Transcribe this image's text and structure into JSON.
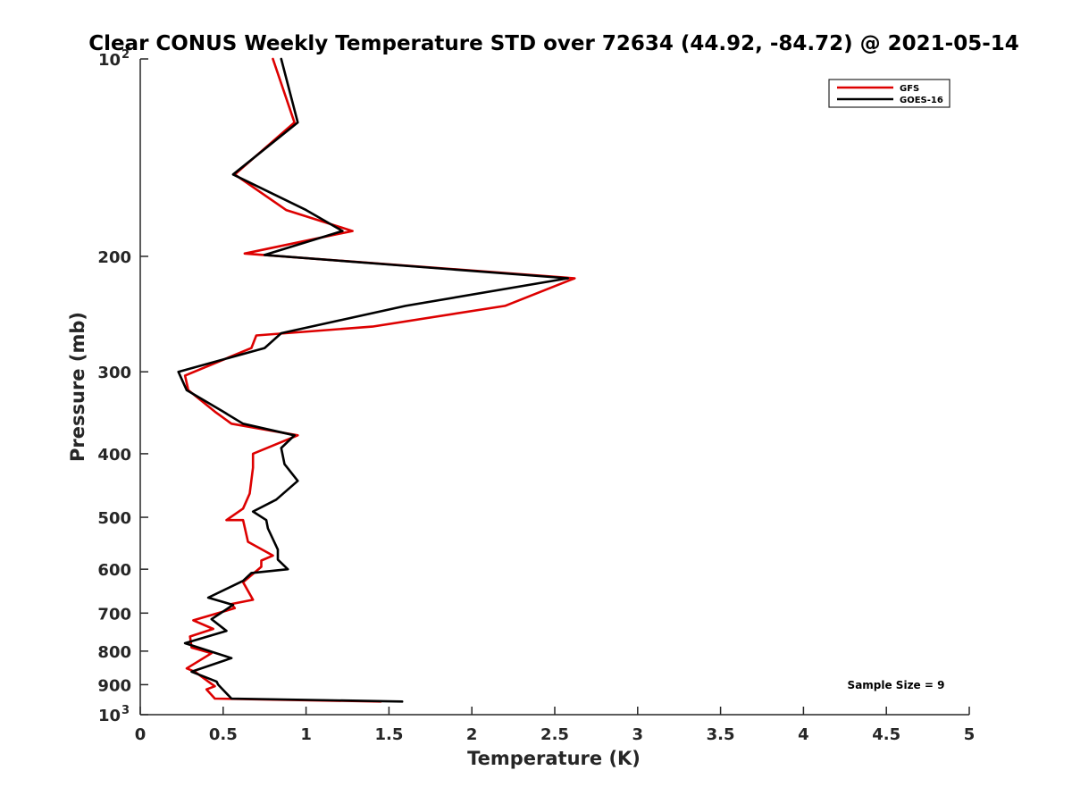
{
  "chart_data": {
    "type": "line",
    "title": "Clear CONUS Weekly Temperature STD over 72634 (44.92, -84.72) @ 2021-05-14",
    "xlabel": "Temperature (K)",
    "ylabel": "Pressure (mb)",
    "xlim": [
      0,
      5
    ],
    "ylim": [
      100,
      1000
    ],
    "y_scale": "log",
    "y_reversed": true,
    "x_ticks": [
      "0",
      "0.5",
      "1",
      "1.5",
      "2",
      "2.5",
      "3",
      "3.5",
      "4",
      "4.5",
      "5"
    ],
    "y_ticks": [
      {
        "value": 100,
        "base": "10",
        "exp": "2"
      },
      {
        "value": 200,
        "label": "200"
      },
      {
        "value": 300,
        "label": "300"
      },
      {
        "value": 400,
        "label": "400"
      },
      {
        "value": 500,
        "label": "500"
      },
      {
        "value": 600,
        "label": "600"
      },
      {
        "value": 700,
        "label": "700"
      },
      {
        "value": 800,
        "label": "800"
      },
      {
        "value": 900,
        "label": "900"
      },
      {
        "value": 1000,
        "base": "10",
        "exp": "3"
      }
    ],
    "grid": false,
    "legend_position": "top-right",
    "annotation": "Sample Size = 9",
    "series": [
      {
        "name": "GFS",
        "color": "#dd0000",
        "points": [
          [
            0.8,
            100
          ],
          [
            0.93,
            125
          ],
          [
            0.57,
            150
          ],
          [
            0.88,
            170
          ],
          [
            1.28,
            183
          ],
          [
            0.63,
            198
          ],
          [
            2.62,
            216
          ],
          [
            2.2,
            238
          ],
          [
            1.4,
            256
          ],
          [
            0.7,
            264
          ],
          [
            0.67,
            276
          ],
          [
            0.27,
            304
          ],
          [
            0.29,
            320
          ],
          [
            0.45,
            345
          ],
          [
            0.55,
            360
          ],
          [
            0.95,
            375
          ],
          [
            0.68,
            400
          ],
          [
            0.68,
            420
          ],
          [
            0.66,
            460
          ],
          [
            0.62,
            485
          ],
          [
            0.52,
            505
          ],
          [
            0.62,
            505
          ],
          [
            0.65,
            545
          ],
          [
            0.8,
            572
          ],
          [
            0.73,
            582
          ],
          [
            0.73,
            595
          ],
          [
            0.62,
            628
          ],
          [
            0.68,
            668
          ],
          [
            0.55,
            678
          ],
          [
            0.57,
            688
          ],
          [
            0.32,
            718
          ],
          [
            0.44,
            740
          ],
          [
            0.3,
            760
          ],
          [
            0.31,
            790
          ],
          [
            0.43,
            806
          ],
          [
            0.28,
            850
          ],
          [
            0.33,
            860
          ],
          [
            0.41,
            890
          ],
          [
            0.45,
            905
          ],
          [
            0.4,
            915
          ],
          [
            0.45,
            945
          ],
          [
            1.45,
            955
          ]
        ]
      },
      {
        "name": "GOES-16",
        "color": "#000000",
        "points": [
          [
            0.85,
            100
          ],
          [
            0.95,
            125
          ],
          [
            0.56,
            150
          ],
          [
            1.0,
            170
          ],
          [
            1.22,
            183
          ],
          [
            0.75,
            199
          ],
          [
            2.58,
            216
          ],
          [
            1.6,
            238
          ],
          [
            0.85,
            262
          ],
          [
            0.75,
            276
          ],
          [
            0.23,
            300
          ],
          [
            0.28,
            320
          ],
          [
            0.5,
            345
          ],
          [
            0.62,
            360
          ],
          [
            0.93,
            375
          ],
          [
            0.85,
            392
          ],
          [
            0.87,
            415
          ],
          [
            0.95,
            440
          ],
          [
            0.82,
            470
          ],
          [
            0.68,
            490
          ],
          [
            0.76,
            505
          ],
          [
            0.77,
            520
          ],
          [
            0.83,
            560
          ],
          [
            0.83,
            580
          ],
          [
            0.89,
            600
          ],
          [
            0.67,
            608
          ],
          [
            0.62,
            625
          ],
          [
            0.41,
            663
          ],
          [
            0.56,
            680
          ],
          [
            0.43,
            715
          ],
          [
            0.52,
            745
          ],
          [
            0.27,
            778
          ],
          [
            0.55,
            820
          ],
          [
            0.31,
            860
          ],
          [
            0.46,
            890
          ],
          [
            0.47,
            900
          ],
          [
            0.55,
            945
          ],
          [
            1.58,
            955
          ]
        ]
      }
    ]
  }
}
